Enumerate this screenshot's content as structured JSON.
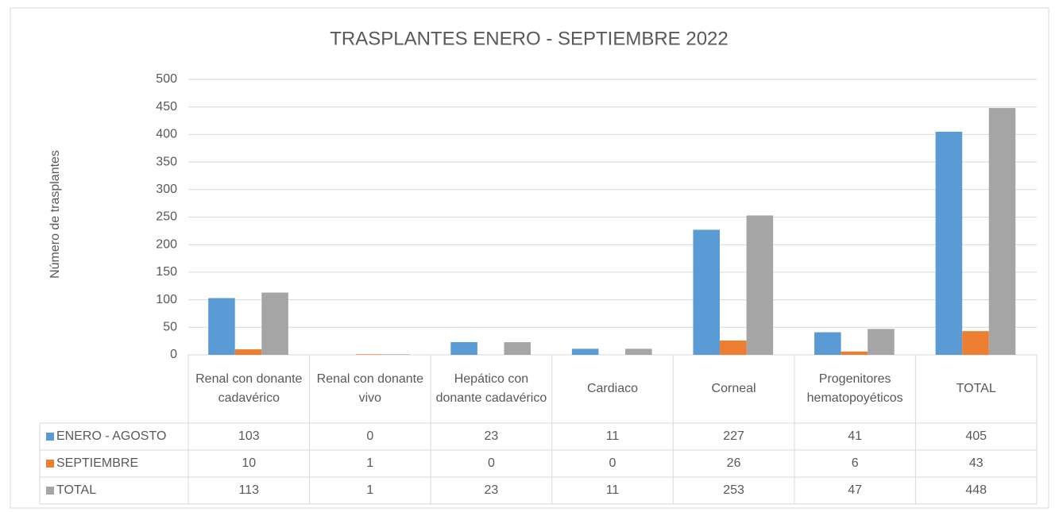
{
  "chart_data": {
    "type": "bar",
    "title": "TRASPLANTES ENERO - SEPTIEMBRE 2022",
    "y_label": "Número de trasplantes",
    "categories": [
      "Renal con donante cadavérico",
      "Renal con donante vivo",
      "Hepático con donante cadavérico",
      "Cardiaco",
      "Corneal",
      "Progenitores hematopoyéticos",
      "TOTAL"
    ],
    "series": [
      {
        "name": "ENERO - AGOSTO",
        "color": "#5b9bd5",
        "values": [
          103,
          0,
          23,
          11,
          227,
          41,
          405
        ]
      },
      {
        "name": "SEPTIEMBRE",
        "color": "#ed7d31",
        "values": [
          10,
          1,
          0,
          0,
          26,
          6,
          43
        ]
      },
      {
        "name": "TOTAL",
        "color": "#a5a5a5",
        "values": [
          113,
          1,
          23,
          11,
          253,
          47,
          448
        ]
      }
    ],
    "ylim": [
      0,
      500
    ],
    "yticks": [
      0,
      50,
      100,
      150,
      200,
      250,
      300,
      350,
      400,
      450,
      500
    ],
    "grid": true
  }
}
